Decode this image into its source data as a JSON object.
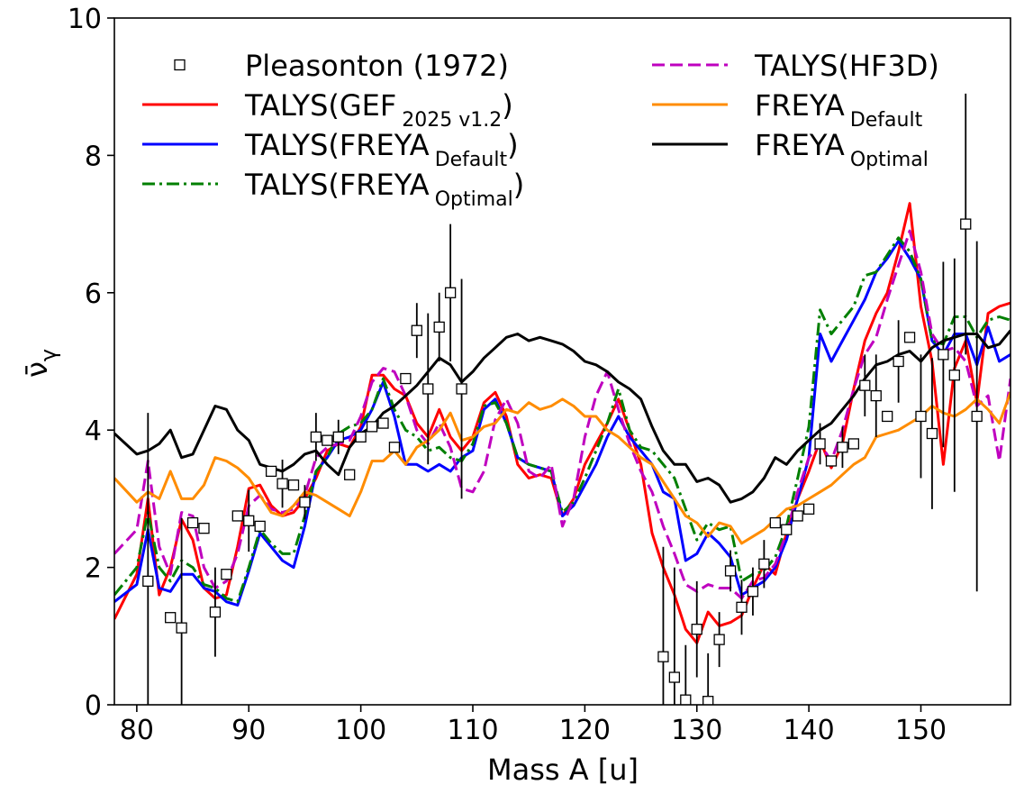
{
  "chart_data": {
    "type": "line",
    "xlabel": "Mass A [u]",
    "ylabel": "ν̄",
    "ylabel_sub": "γ",
    "xlim": [
      78,
      158
    ],
    "ylim": [
      0,
      10
    ],
    "xticks": [
      80,
      90,
      100,
      110,
      120,
      130,
      140,
      150
    ],
    "yticks": [
      0,
      2,
      4,
      6,
      8,
      10
    ],
    "grid": false,
    "legend_placement": "top",
    "series": [
      {
        "name": "TALYS(GEF",
        "name_sub": "2025 v1.2",
        "name_suffix": ")",
        "color": "#ff0000",
        "style": "solid",
        "x": [
          78,
          80,
          81,
          82,
          83,
          84,
          85,
          86,
          87,
          88,
          89,
          90,
          91,
          92,
          93,
          94,
          95,
          96,
          97,
          98,
          99,
          100,
          101,
          102,
          103,
          104,
          105,
          106,
          107,
          108,
          109,
          110,
          111,
          112,
          113,
          114,
          115,
          116,
          117,
          118,
          119,
          120,
          121,
          122,
          123,
          124,
          125,
          126,
          127,
          128,
          129,
          130,
          131,
          132,
          133,
          134,
          135,
          136,
          137,
          138,
          139,
          140,
          141,
          142,
          143,
          144,
          145,
          146,
          147,
          148,
          149,
          150,
          151,
          152,
          153,
          154,
          155,
          156,
          157,
          158
        ],
        "y": [
          1.25,
          1.9,
          3.0,
          1.6,
          2.0,
          2.7,
          2.4,
          1.7,
          1.55,
          1.6,
          2.3,
          3.15,
          3.2,
          2.9,
          2.75,
          2.8,
          3.0,
          3.3,
          3.7,
          3.8,
          3.75,
          4.05,
          4.8,
          4.8,
          4.6,
          4.5,
          4.1,
          3.9,
          4.3,
          3.9,
          3.7,
          3.9,
          4.4,
          4.55,
          4.2,
          3.5,
          3.3,
          3.35,
          3.3,
          2.75,
          3.0,
          3.5,
          3.8,
          4.1,
          4.45,
          4.0,
          3.5,
          2.5,
          2.0,
          1.6,
          1.1,
          0.9,
          1.35,
          1.15,
          1.2,
          1.3,
          1.7,
          2.05,
          1.9,
          2.5,
          3.0,
          3.4,
          3.85,
          3.45,
          3.8,
          4.6,
          5.3,
          5.7,
          6.0,
          6.6,
          7.3,
          5.8,
          5.0,
          3.5,
          4.9,
          5.3,
          4.4,
          5.7,
          5.8,
          5.85
        ]
      },
      {
        "name": "TALYS(FREYA",
        "name_sub": "Default",
        "name_suffix": ")",
        "color": "#0000ff",
        "style": "solid",
        "x": [
          78,
          80,
          81,
          82,
          83,
          84,
          85,
          86,
          87,
          88,
          89,
          90,
          91,
          92,
          93,
          94,
          95,
          96,
          97,
          98,
          99,
          100,
          101,
          102,
          103,
          104,
          105,
          106,
          107,
          108,
          109,
          110,
          111,
          112,
          113,
          114,
          115,
          116,
          117,
          118,
          119,
          120,
          121,
          122,
          123,
          124,
          125,
          126,
          127,
          128,
          129,
          130,
          131,
          132,
          133,
          134,
          135,
          136,
          137,
          138,
          139,
          140,
          141,
          142,
          143,
          144,
          145,
          146,
          147,
          148,
          149,
          150,
          151,
          152,
          153,
          154,
          155,
          156,
          157,
          158
        ],
        "y": [
          1.5,
          1.75,
          2.55,
          1.7,
          1.65,
          1.9,
          1.9,
          1.7,
          1.65,
          1.5,
          1.45,
          1.95,
          2.5,
          2.3,
          2.1,
          2.0,
          2.6,
          3.4,
          3.6,
          3.85,
          3.9,
          4.0,
          4.3,
          4.7,
          4.2,
          3.5,
          3.5,
          3.4,
          3.5,
          3.4,
          3.6,
          3.7,
          4.3,
          4.45,
          4.1,
          3.6,
          3.5,
          3.45,
          3.4,
          2.75,
          2.9,
          3.2,
          3.5,
          3.9,
          4.2,
          3.9,
          3.7,
          3.5,
          3.1,
          3.0,
          2.1,
          2.2,
          2.5,
          2.35,
          2.15,
          1.6,
          1.7,
          1.8,
          2.0,
          2.4,
          3.0,
          3.6,
          5.4,
          5.0,
          5.3,
          5.6,
          5.9,
          6.3,
          6.5,
          6.75,
          6.5,
          6.2,
          5.3,
          5.1,
          5.4,
          5.4,
          4.95,
          5.5,
          5.0,
          5.1
        ]
      },
      {
        "name": "TALYS(FREYA",
        "name_sub": "Optimal",
        "name_suffix": ")",
        "color": "#007f00",
        "style": "dashdot",
        "x": [
          78,
          80,
          81,
          82,
          83,
          84,
          85,
          86,
          87,
          88,
          89,
          90,
          91,
          92,
          93,
          94,
          95,
          96,
          97,
          98,
          99,
          100,
          101,
          102,
          103,
          104,
          105,
          106,
          107,
          108,
          109,
          110,
          111,
          112,
          113,
          114,
          115,
          116,
          117,
          118,
          119,
          120,
          121,
          122,
          123,
          124,
          125,
          126,
          127,
          128,
          129,
          130,
          131,
          132,
          133,
          134,
          135,
          136,
          137,
          138,
          139,
          140,
          141,
          142,
          143,
          144,
          145,
          146,
          147,
          148,
          149,
          150,
          151,
          152,
          153,
          154,
          155,
          156,
          157,
          158
        ],
        "y": [
          1.6,
          2.0,
          2.8,
          2.0,
          1.8,
          2.1,
          2.0,
          1.75,
          1.7,
          1.55,
          1.5,
          2.0,
          2.55,
          2.35,
          2.2,
          2.2,
          2.75,
          3.4,
          3.6,
          3.95,
          4.05,
          4.1,
          4.3,
          4.75,
          4.3,
          4.0,
          3.9,
          3.7,
          3.75,
          3.6,
          3.55,
          3.8,
          4.35,
          4.4,
          4.1,
          3.6,
          3.5,
          3.45,
          3.4,
          2.8,
          2.95,
          3.3,
          3.7,
          4.1,
          4.6,
          4.0,
          3.75,
          3.7,
          3.5,
          3.3,
          2.85,
          2.4,
          2.65,
          2.55,
          2.6,
          1.8,
          1.9,
          1.95,
          2.15,
          2.6,
          3.3,
          4.05,
          5.75,
          5.4,
          5.6,
          5.8,
          6.25,
          6.3,
          6.55,
          6.8,
          6.6,
          6.2,
          5.3,
          5.25,
          5.65,
          5.65,
          5.35,
          5.6,
          5.65,
          5.6
        ]
      },
      {
        "name": "TALYS(HF3D)",
        "color": "#bf00bf",
        "style": "dashed",
        "x": [
          78,
          80,
          81,
          82,
          83,
          84,
          85,
          86,
          87,
          88,
          89,
          90,
          91,
          92,
          93,
          94,
          95,
          96,
          97,
          98,
          99,
          100,
          101,
          102,
          103,
          104,
          105,
          106,
          107,
          108,
          109,
          110,
          111,
          112,
          113,
          114,
          115,
          116,
          117,
          118,
          119,
          120,
          121,
          122,
          123,
          124,
          125,
          126,
          127,
          128,
          129,
          130,
          131,
          132,
          133,
          134,
          135,
          136,
          137,
          138,
          139,
          140,
          141,
          142,
          143,
          144,
          145,
          146,
          147,
          148,
          149,
          150,
          151,
          152,
          153,
          154,
          155,
          156,
          157,
          158
        ],
        "y": [
          2.2,
          2.55,
          3.55,
          2.3,
          1.9,
          2.8,
          2.75,
          2.0,
          1.7,
          1.8,
          2.2,
          2.9,
          3.05,
          2.85,
          2.8,
          2.85,
          3.05,
          3.6,
          3.75,
          3.8,
          3.85,
          4.2,
          4.7,
          4.9,
          4.85,
          4.5,
          4.0,
          3.8,
          4.1,
          3.75,
          3.15,
          3.1,
          3.4,
          4.15,
          4.45,
          4.1,
          3.4,
          3.3,
          3.5,
          2.6,
          3.0,
          3.9,
          4.5,
          4.85,
          4.3,
          3.8,
          3.4,
          3.1,
          2.6,
          2.2,
          1.75,
          1.65,
          1.75,
          1.7,
          1.7,
          1.55,
          1.8,
          1.85,
          2.05,
          2.5,
          3.1,
          3.6,
          3.8,
          3.55,
          4.0,
          4.6,
          5.1,
          5.35,
          5.9,
          6.4,
          6.9,
          6.3,
          5.4,
          5.15,
          5.2,
          5.0,
          4.35,
          4.5,
          3.55,
          4.75
        ]
      },
      {
        "name": "FREYA",
        "name_sub": "Default",
        "color": "#ff8c00",
        "style": "solid",
        "x": [
          78,
          80,
          81,
          82,
          83,
          84,
          85,
          86,
          87,
          88,
          89,
          90,
          91,
          92,
          93,
          94,
          95,
          96,
          97,
          98,
          99,
          100,
          101,
          102,
          103,
          104,
          105,
          106,
          107,
          108,
          109,
          110,
          111,
          112,
          113,
          114,
          115,
          116,
          117,
          118,
          119,
          120,
          121,
          122,
          123,
          124,
          125,
          126,
          127,
          128,
          129,
          130,
          131,
          132,
          133,
          134,
          135,
          136,
          137,
          138,
          139,
          140,
          141,
          142,
          143,
          144,
          145,
          146,
          147,
          148,
          149,
          150,
          151,
          152,
          153,
          154,
          155,
          156,
          157,
          158
        ],
        "y": [
          3.3,
          2.95,
          3.1,
          3.0,
          3.4,
          3.0,
          3.0,
          3.2,
          3.6,
          3.55,
          3.45,
          3.3,
          3.05,
          2.8,
          2.75,
          2.9,
          3.1,
          3.05,
          2.95,
          2.85,
          2.75,
          3.1,
          3.55,
          3.55,
          3.7,
          3.5,
          3.75,
          3.85,
          4.0,
          4.25,
          3.85,
          3.9,
          4.05,
          4.1,
          4.3,
          4.25,
          4.4,
          4.3,
          4.35,
          4.45,
          4.35,
          4.2,
          4.2,
          4.0,
          3.9,
          3.75,
          3.6,
          3.5,
          3.25,
          3.0,
          2.75,
          2.65,
          2.45,
          2.65,
          2.6,
          2.35,
          2.45,
          2.55,
          2.7,
          2.85,
          2.9,
          3.0,
          3.1,
          3.2,
          3.35,
          3.5,
          3.6,
          3.9,
          3.95,
          4.0,
          4.1,
          4.2,
          4.35,
          4.25,
          4.2,
          4.3,
          4.45,
          4.3,
          4.1,
          4.55
        ]
      },
      {
        "name": "FREYA",
        "name_sub": "Optimal",
        "color": "#000000",
        "style": "solid",
        "x": [
          78,
          80,
          81,
          82,
          83,
          84,
          85,
          86,
          87,
          88,
          89,
          90,
          91,
          92,
          93,
          94,
          95,
          96,
          97,
          98,
          99,
          100,
          101,
          102,
          103,
          104,
          105,
          106,
          107,
          108,
          109,
          110,
          111,
          112,
          113,
          114,
          115,
          116,
          117,
          118,
          119,
          120,
          121,
          122,
          123,
          124,
          125,
          126,
          127,
          128,
          129,
          130,
          131,
          132,
          133,
          134,
          135,
          136,
          137,
          138,
          139,
          140,
          141,
          142,
          143,
          144,
          145,
          146,
          147,
          148,
          149,
          150,
          151,
          152,
          153,
          154,
          155,
          156,
          157,
          158
        ],
        "y": [
          3.95,
          3.65,
          3.7,
          3.8,
          4.0,
          3.6,
          3.65,
          4.0,
          4.35,
          4.3,
          4.0,
          3.85,
          3.5,
          3.45,
          3.4,
          3.5,
          3.65,
          3.7,
          3.5,
          3.35,
          3.75,
          3.95,
          4.05,
          4.25,
          4.35,
          4.5,
          4.65,
          4.85,
          5.05,
          4.95,
          4.7,
          4.85,
          5.05,
          5.2,
          5.35,
          5.4,
          5.3,
          5.35,
          5.3,
          5.25,
          5.15,
          5.0,
          4.95,
          4.85,
          4.7,
          4.6,
          4.45,
          4.05,
          3.7,
          3.5,
          3.5,
          3.25,
          3.3,
          3.2,
          2.95,
          3.0,
          3.1,
          3.3,
          3.6,
          3.5,
          3.7,
          3.85,
          4.0,
          4.1,
          4.3,
          4.5,
          4.75,
          4.95,
          5.0,
          5.1,
          5.15,
          5.0,
          5.2,
          5.3,
          5.35,
          5.4,
          5.4,
          5.2,
          5.25,
          5.45
        ]
      }
    ],
    "points": {
      "name": "Pleasonton (1972)",
      "marker": "square-open",
      "color": "#000000",
      "x": [
        81,
        83,
        84,
        85,
        86,
        87,
        88,
        89,
        90,
        91,
        92,
        93,
        94,
        95,
        96,
        97,
        98,
        99,
        100,
        101,
        102,
        103,
        104,
        105,
        106,
        107,
        108,
        109,
        127,
        128,
        129,
        130,
        131,
        132,
        133,
        134,
        135,
        136,
        137,
        138,
        139,
        140,
        141,
        142,
        143,
        144,
        145,
        146,
        147,
        148,
        149,
        150,
        151,
        152,
        153,
        154,
        155
      ],
      "y": [
        1.8,
        1.27,
        1.12,
        2.65,
        2.57,
        1.35,
        1.9,
        2.75,
        2.68,
        2.6,
        3.4,
        3.22,
        3.2,
        2.95,
        3.9,
        3.85,
        3.9,
        3.35,
        3.9,
        4.05,
        4.1,
        3.75,
        4.75,
        5.45,
        4.6,
        5.5,
        6.0,
        4.6,
        0.7,
        0.4,
        0.07,
        1.1,
        0.05,
        0.95,
        1.95,
        1.42,
        1.65,
        2.05,
        2.65,
        2.55,
        2.75,
        2.85,
        3.8,
        3.55,
        3.75,
        3.8,
        4.65,
        4.5,
        4.2,
        5.0,
        5.35,
        4.2,
        3.95,
        5.1,
        4.8,
        7.0,
        4.2
      ],
      "yerr": [
        2.45,
        0.0,
        1.6,
        0.0,
        0.0,
        0.65,
        0.0,
        0.0,
        0.45,
        0.0,
        0.0,
        0.35,
        0.0,
        0.25,
        0.35,
        0.0,
        0.25,
        0.0,
        0.0,
        0.0,
        0.0,
        0.0,
        0.0,
        0.4,
        1.1,
        0.5,
        1.0,
        1.6,
        1.6,
        1.6,
        0.8,
        0.7,
        0.7,
        0.4,
        0.3,
        0.4,
        0.35,
        0.35,
        0.0,
        0.0,
        0.0,
        0.0,
        0.3,
        0.0,
        0.3,
        0.0,
        0.45,
        0.6,
        0.0,
        0.6,
        0.0,
        0.9,
        1.1,
        1.35,
        1.7,
        1.9,
        2.55
      ]
    }
  }
}
